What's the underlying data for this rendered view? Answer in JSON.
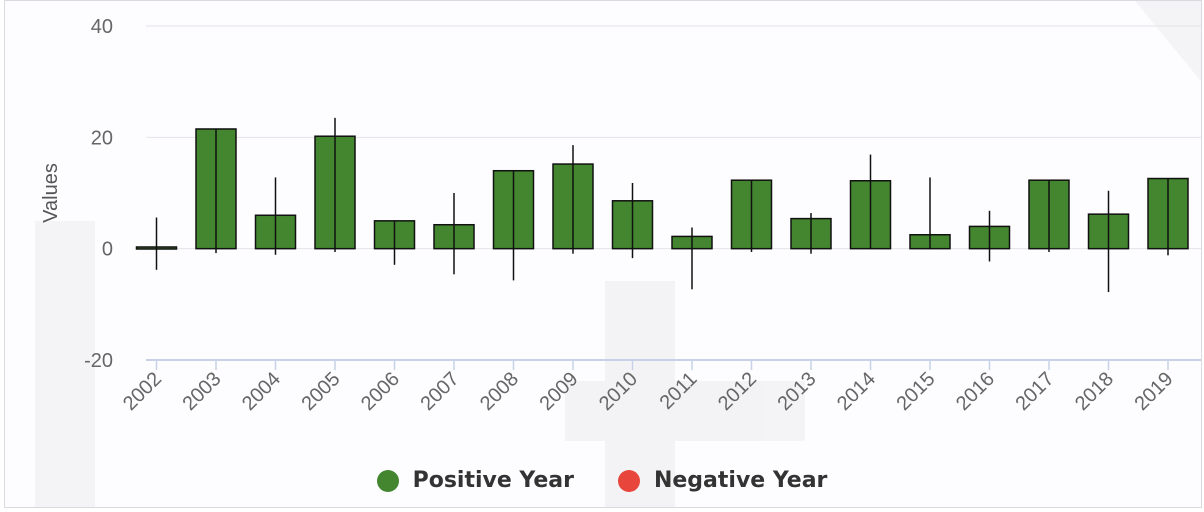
{
  "chart_data": {
    "type": "bar",
    "ylabel": "Values",
    "ylim": [
      -20,
      40
    ],
    "yticks": [
      "-20",
      "0",
      "20",
      "40"
    ],
    "grid": true,
    "legend_position": "bottom-center",
    "categories": [
      "2002",
      "2003",
      "2004",
      "2005",
      "2006",
      "2007",
      "2008",
      "2009",
      "2010",
      "2011",
      "2012",
      "2013",
      "2014",
      "2015",
      "2016",
      "2017",
      "2018",
      "2019"
    ],
    "values": [
      0.3,
      21.5,
      6.0,
      20.2,
      5.0,
      4.3,
      14.0,
      15.2,
      8.6,
      2.2,
      12.3,
      5.4,
      12.2,
      2.5,
      4.0,
      12.3,
      6.2,
      12.6
    ],
    "error_high": [
      5.6,
      21.5,
      12.8,
      23.5,
      5.0,
      10.0,
      14.0,
      18.6,
      11.8,
      3.8,
      12.3,
      6.4,
      16.9,
      12.8,
      6.8,
      12.3,
      10.4,
      12.6
    ],
    "error_low": [
      -3.8,
      -0.8,
      -1.1,
      -0.6,
      -2.9,
      -4.6,
      -5.7,
      -0.9,
      -1.7,
      -7.3,
      -0.6,
      -0.9,
      -0.1,
      -0.1,
      -2.3,
      -0.6,
      -7.8,
      -1.2
    ],
    "series": [
      {
        "name": "Positive Year",
        "color": "#43862f"
      },
      {
        "name": "Negative Year",
        "color": "#e8453c"
      }
    ]
  }
}
